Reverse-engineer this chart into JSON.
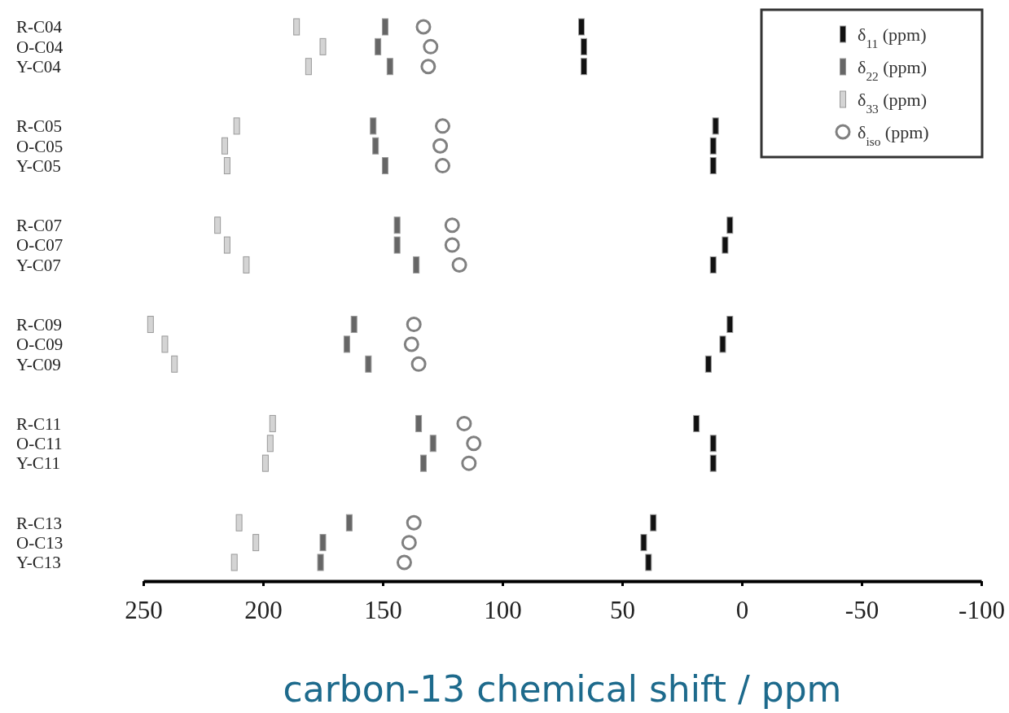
{
  "chart_data": {
    "type": "scatter",
    "orientation": "horizontal",
    "xlabel": "carbon-13 chemical shift / ppm",
    "xlim": [
      250,
      -100
    ],
    "xticks": [
      250,
      200,
      150,
      100,
      50,
      0,
      -50,
      -100
    ],
    "legend": "top right",
    "categories": [
      "R-C04",
      "O-C04",
      "Y-C04",
      null,
      null,
      "R-C05",
      "O-C05",
      "Y-C05",
      null,
      null,
      "R-C07",
      "O-C07",
      "Y-C07",
      null,
      null,
      "R-C09",
      "O-C09",
      "Y-C09",
      null,
      null,
      "R-C11",
      "O-C11",
      "Y-C11",
      null,
      null,
      "R-C13",
      "O-C13",
      "Y-C13"
    ],
    "series": [
      {
        "name": "δ$_{11}$ (ppm)",
        "color": "#111111",
        "marker": "square",
        "values": [
          67,
          66,
          66,
          null,
          null,
          11,
          12,
          12,
          null,
          null,
          5,
          7,
          12,
          null,
          null,
          5,
          8,
          14,
          null,
          null,
          19,
          12,
          12,
          null,
          null,
          37,
          41,
          39
        ]
      },
      {
        "name": "δ$_{22}$ (ppm)",
        "color": "#666666",
        "marker": "square",
        "values": [
          149,
          152,
          147,
          null,
          null,
          154,
          153,
          149,
          null,
          null,
          144,
          144,
          136,
          null,
          null,
          162,
          165,
          156,
          null,
          null,
          135,
          129,
          133,
          null,
          null,
          164,
          175,
          176
        ]
      },
      {
        "name": "δ$_{33}$ (ppm)",
        "color": "#d4d4d4",
        "marker": "square",
        "values": [
          186,
          175,
          181,
          null,
          null,
          211,
          216,
          215,
          null,
          null,
          219,
          215,
          207,
          null,
          null,
          247,
          241,
          237,
          null,
          null,
          196,
          197,
          199,
          null,
          null,
          210,
          203,
          212
        ]
      },
      {
        "name": "δ$_{iso}$ (ppm)",
        "color": "#808080",
        "marker": "circle",
        "values": [
          133,
          130,
          131,
          null,
          null,
          125,
          126,
          125,
          null,
          null,
          121,
          121,
          118,
          null,
          null,
          137,
          138,
          135,
          null,
          null,
          116,
          112,
          114,
          null,
          null,
          137,
          139,
          141
        ]
      }
    ]
  }
}
